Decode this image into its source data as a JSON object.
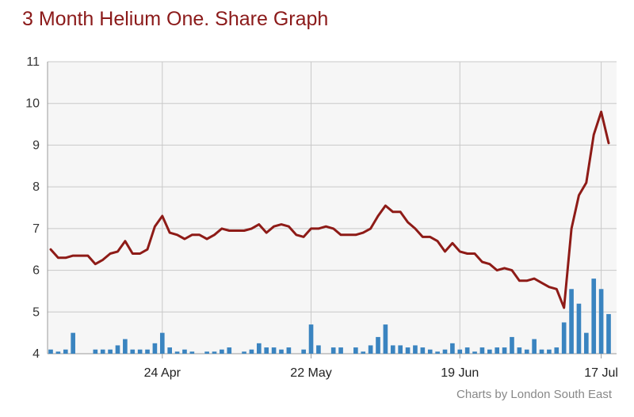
{
  "title": "3 Month Helium One. Share Graph",
  "credit": "Charts by London South East",
  "colors": {
    "price_line": "#8e1b17",
    "volume_bars": "#3a84c0",
    "plot_background": "#f6f6f6",
    "grid": "#c8c8c8"
  },
  "chart_data": {
    "type": "line",
    "title": "3 Month Helium One. Share Graph",
    "xlabel": "",
    "ylabel": "",
    "ylim": [
      4,
      11
    ],
    "y_ticks": [
      "4",
      "5",
      "6",
      "7",
      "8",
      "9",
      "10",
      "11"
    ],
    "x_ticks": [
      "24 Apr",
      "22 May",
      "19 Jun",
      "17 Jul"
    ],
    "grid": true,
    "legend": "none",
    "series": [
      {
        "values": [
          6.5,
          6.3,
          6.3,
          6.35,
          6.35,
          6.35,
          6.15,
          6.25,
          6.4,
          6.45,
          6.7,
          6.4,
          6.4,
          6.5,
          7.05,
          7.3,
          6.9,
          6.85,
          6.75,
          6.85,
          6.85,
          6.75,
          6.85,
          7.0,
          6.95,
          6.95,
          6.95,
          7.0,
          7.1,
          6.9,
          7.05,
          7.1,
          7.05,
          6.85,
          6.8,
          7.0,
          7.0,
          7.05,
          7.0,
          6.85,
          6.85,
          6.85,
          6.9,
          7.0,
          7.3,
          7.55,
          7.4,
          7.4,
          7.15,
          7.0,
          6.8,
          6.8,
          6.7,
          6.45,
          6.65,
          6.45,
          6.4,
          6.4,
          6.2,
          6.15,
          6.0,
          6.05,
          6.0,
          5.75,
          5.75,
          5.8,
          5.7,
          5.6,
          5.55,
          5.1,
          7.0,
          7.8,
          8.1,
          9.25,
          9.8,
          9.05
        ]
      },
      {
        "values": [
          0.1,
          0.05,
          0.1,
          0.5,
          0,
          0,
          0.1,
          0.1,
          0.1,
          0.2,
          0.35,
          0.1,
          0.1,
          0.1,
          0.25,
          0.5,
          0.15,
          0.05,
          0.1,
          0.05,
          0,
          0.05,
          0.05,
          0.1,
          0.15,
          0,
          0.05,
          0.1,
          0.25,
          0.15,
          0.15,
          0.1,
          0.15,
          0,
          0.1,
          0.7,
          0.2,
          0,
          0.15,
          0.15,
          0,
          0.15,
          0.05,
          0.2,
          0.4,
          0.7,
          0.2,
          0.2,
          0.15,
          0.2,
          0.15,
          0.1,
          0.05,
          0.1,
          0.25,
          0.1,
          0.15,
          0.05,
          0.15,
          0.1,
          0.15,
          0.15,
          0.4,
          0.15,
          0.1,
          0.35,
          0.1,
          0.1,
          0.15,
          0.75,
          1.55,
          1.2,
          0.5,
          1.8,
          1.55,
          0.95
        ]
      }
    ]
  }
}
